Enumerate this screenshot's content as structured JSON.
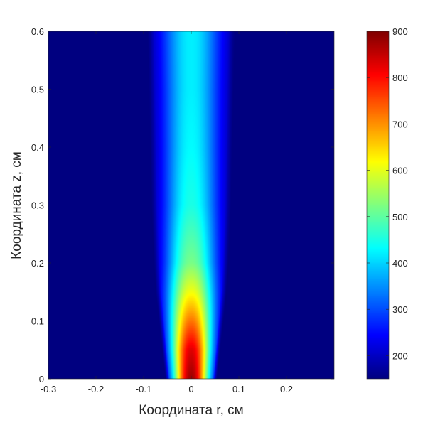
{
  "chart_data": {
    "type": "heatmap",
    "title": "",
    "xlabel": "Координата r, см",
    "ylabel": "Координата z, см",
    "xlim": [
      -0.3,
      0.3
    ],
    "ylim": [
      0,
      0.6
    ],
    "x_ticks": [
      -0.3,
      -0.2,
      -0.1,
      0,
      0.1,
      0.2
    ],
    "x_tick_labels": [
      "-0.3",
      "-0.2",
      "-0.1",
      "0",
      "0.1",
      "0.2"
    ],
    "y_ticks": [
      0,
      0.1,
      0.2,
      0.3,
      0.4,
      0.5,
      0.6
    ],
    "y_tick_labels": [
      "0",
      "0.1",
      "0.2",
      "0.3",
      "0.4",
      "0.5",
      "0.6"
    ],
    "colormap": "jet",
    "color_range": [
      150,
      900
    ],
    "colorbar_ticks": [
      200,
      300,
      400,
      500,
      600,
      700,
      800,
      900
    ],
    "colorbar_tick_labels": [
      "200",
      "300",
      "400",
      "500",
      "600",
      "700",
      "800",
      "900"
    ],
    "grid": false,
    "colorbar_placement": "right",
    "field_description_samples": {
      "z": [
        0,
        0.05,
        0.1,
        0.15,
        0.2,
        0.3,
        0.4,
        0.5,
        0.6
      ],
      "centerline_value": [
        880,
        830,
        720,
        610,
        520,
        450,
        430,
        420,
        420
      ],
      "half_width_r": [
        0.04,
        0.045,
        0.05,
        0.055,
        0.058,
        0.062,
        0.064,
        0.066,
        0.068
      ]
    },
    "background_value": 150
  }
}
